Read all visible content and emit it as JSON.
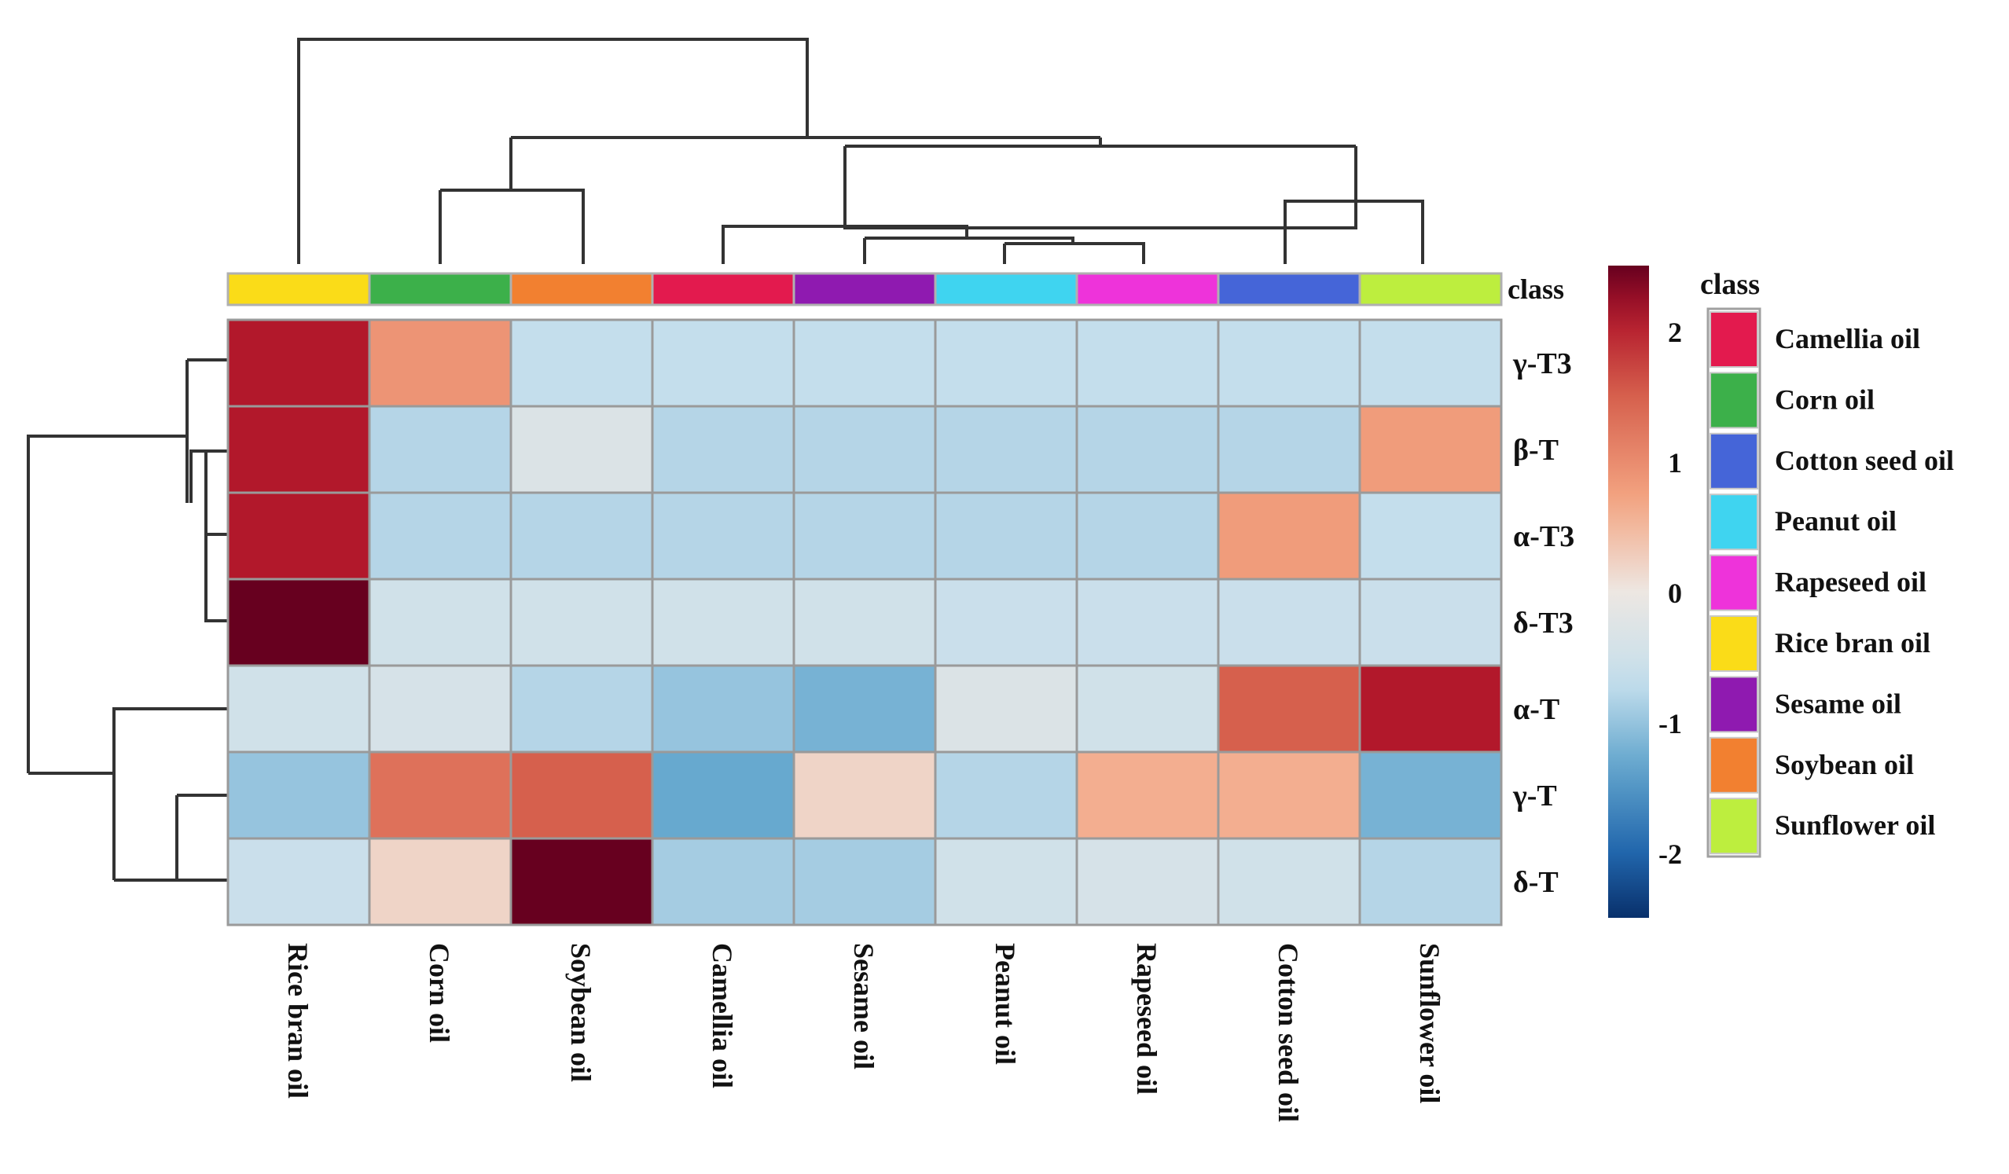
{
  "chart_data": {
    "type": "heatmap",
    "columns": [
      "Rice bran oil",
      "Corn oil",
      "Soybean oil",
      "Camellia oil",
      "Sesame oil",
      "Peanut oil",
      "Rapeseed oil",
      "Cotton seed oil",
      "Sunflower oil"
    ],
    "rows": [
      "γ-T3",
      "β-T",
      "α-T3",
      "δ-T3",
      "α-T",
      "γ-T",
      "δ-T"
    ],
    "values": [
      [
        2.1,
        0.9,
        -0.7,
        -0.7,
        -0.7,
        -0.7,
        -0.7,
        -0.7,
        -0.7
      ],
      [
        2.1,
        -0.8,
        -0.3,
        -0.8,
        -0.8,
        -0.8,
        -0.8,
        -0.8,
        0.8
      ],
      [
        2.1,
        -0.8,
        -0.8,
        -0.8,
        -0.8,
        -0.8,
        -0.8,
        0.8,
        -0.7
      ],
      [
        2.5,
        -0.5,
        -0.5,
        -0.5,
        -0.5,
        -0.6,
        -0.6,
        -0.6,
        -0.6
      ],
      [
        -0.5,
        -0.4,
        -0.8,
        -1.0,
        -1.2,
        -0.3,
        -0.5,
        1.5,
        2.1
      ],
      [
        -1.0,
        1.3,
        1.5,
        -1.3,
        0.2,
        -0.8,
        0.6,
        0.6,
        -1.2
      ],
      [
        -0.6,
        0.2,
        2.5,
        -0.9,
        -0.9,
        -0.5,
        -0.4,
        -0.5,
        -0.8
      ]
    ],
    "class_title": "class",
    "colorbar_ticks": [
      2,
      1,
      0,
      -1,
      -2
    ],
    "colorbar_range": [
      -2.5,
      2.5
    ],
    "legend": {
      "title": "class",
      "items": [
        {
          "label": "Camellia oil",
          "color": "#e31a4e"
        },
        {
          "label": "Corn oil",
          "color": "#3cb04a"
        },
        {
          "label": "Cotton seed oil",
          "color": "#4565d8"
        },
        {
          "label": "Peanut oil",
          "color": "#3fd4f0"
        },
        {
          "label": "Rapeseed oil",
          "color": "#ee33da"
        },
        {
          "label": "Rice bran oil",
          "color": "#fadc18"
        },
        {
          "label": "Sesame oil",
          "color": "#8f1ab0"
        },
        {
          "label": "Soybean oil",
          "color": "#f28030"
        },
        {
          "label": "Sunflower oil",
          "color": "#bdee3e"
        }
      ]
    }
  }
}
